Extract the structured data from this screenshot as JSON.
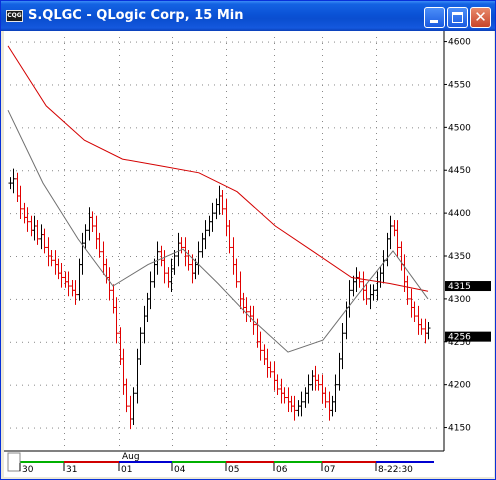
{
  "window": {
    "title": "S.QLGC - QLogic Corp, 15 Min",
    "icon_text": "CQG",
    "buttons": [
      "minimize",
      "maximize",
      "close"
    ]
  },
  "colors": {
    "up_bar": "#000000",
    "down_bar": "#e00000",
    "moving_avg_long": "#d40000",
    "moving_avg_short": "#707070",
    "price_badge_bg": "#000000"
  },
  "price_axis": {
    "ticks": [
      "4600",
      "4550",
      "4500",
      "4450",
      "4400",
      "4350",
      "4300",
      "4250",
      "4200",
      "4150"
    ],
    "badges": [
      "4315",
      "4256"
    ]
  },
  "time_axis": {
    "month_label": "Aug",
    "labels": [
      "30",
      "31",
      "01",
      "04",
      "05",
      "06",
      "07",
      "8-22:30"
    ]
  },
  "chart_data": {
    "type": "bar",
    "ylim": [
      4125,
      4610
    ],
    "series": [
      {
        "name": "",
        "kind": "ohlc",
        "values": [
          4435,
          4440,
          4420,
          4405,
          4395,
          4390,
          4380,
          4385,
          4370,
          4375,
          4360,
          4350,
          4345,
          4340,
          4330,
          4325,
          4320,
          4315,
          4310,
          4305,
          4340,
          4365,
          4380,
          4395,
          4385,
          4370,
          4355,
          4340,
          4325,
          4310,
          4290,
          4260,
          4230,
          4200,
          4175,
          4160,
          4190,
          4230,
          4260,
          4280,
          4300,
          4320,
          4340,
          4355,
          4345,
          4330,
          4320,
          4335,
          4350,
          4365,
          4360,
          4350,
          4340,
          4330,
          4340,
          4355,
          4370,
          4380,
          4390,
          4400,
          4410,
          4420,
          4405,
          4385,
          4360,
          4340,
          4320,
          4300,
          4290,
          4285,
          4280,
          4270,
          4250,
          4240,
          4230,
          4220,
          4215,
          4205,
          4195,
          4190,
          4185,
          4180,
          4175,
          4170,
          4175,
          4180,
          4190,
          4200,
          4210,
          4205,
          4200,
          4190,
          4180,
          4170,
          4180,
          4200,
          4230,
          4260,
          4290,
          4310,
          4320,
          4325,
          4320,
          4310,
          4300,
          4305,
          4310,
          4320,
          4330,
          4345,
          4370,
          4385,
          4380,
          4360,
          4340,
          4320,
          4300,
          4290,
          4280,
          4270,
          4265,
          4260,
          4266
        ]
      },
      {
        "name": "",
        "kind": "ma_long",
        "values": [
          4595,
          4525,
          4485,
          4463,
          4455,
          4447,
          4425,
          4385,
          4355,
          4325,
          4318,
          4309
        ]
      },
      {
        "name": "",
        "kind": "ma_short",
        "values": [
          4520,
          4435,
          4370,
          4315,
          4340,
          4358,
          4318,
          4275,
          4238,
          4252,
          4305,
          4356,
          4300
        ]
      }
    ]
  }
}
